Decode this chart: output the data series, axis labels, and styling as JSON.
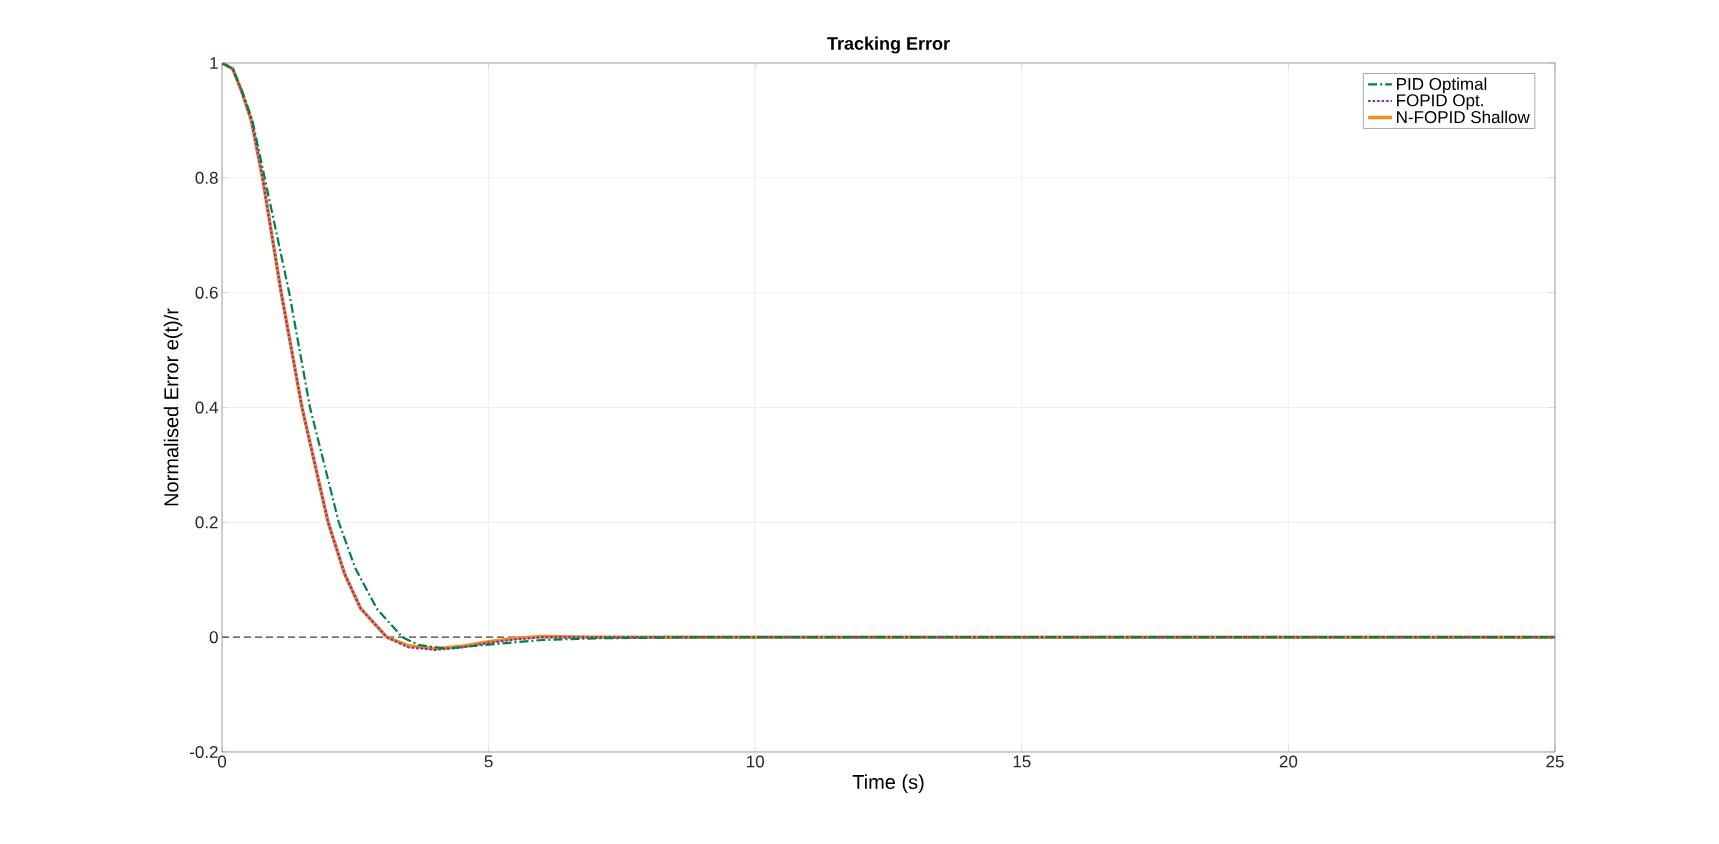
{
  "chart_data": {
    "type": "line",
    "title": "Tracking Error",
    "xlabel": "Time (s)",
    "ylabel": "Normalised Error  e(t)/r",
    "xlim": [
      0,
      25
    ],
    "ylim": [
      -0.2,
      1
    ],
    "xticks": [
      0,
      5,
      10,
      15,
      20,
      25
    ],
    "yticks": [
      -0.2,
      0,
      0.2,
      0.4,
      0.6,
      0.8,
      1
    ],
    "grid": true,
    "legend": "top right",
    "ref_lines": [
      {
        "axis": "y",
        "value": 0,
        "color": "#404040",
        "line_style": "dashed"
      }
    ],
    "series": [
      {
        "name": "PID Optimal",
        "color": "#00804a",
        "line_style": "dashed",
        "x": [
          0,
          0.2,
          0.38,
          0.57,
          0.8,
          1.26,
          1.65,
          2.19,
          2.5,
          2.9,
          3.38,
          3.7,
          4.2,
          5,
          6,
          7,
          9,
          25
        ],
        "values": [
          1,
          0.99,
          0.95,
          0.9,
          0.8,
          0.6,
          0.4,
          0.2,
          0.12,
          0.05,
          0,
          -0.014,
          -0.02,
          -0.013,
          -0.005,
          -0.002,
          0,
          0
        ]
      },
      {
        "name": "FOPID Opt.",
        "color": "#7e2fbe",
        "line_style": "dotted",
        "x": [
          0,
          0.2,
          0.37,
          0.55,
          0.76,
          1.11,
          1.5,
          1.99,
          2.3,
          2.6,
          3.09,
          3.5,
          4,
          4.5,
          5,
          5.5,
          6,
          7,
          25
        ],
        "values": [
          1,
          0.99,
          0.95,
          0.9,
          0.8,
          0.6,
          0.4,
          0.2,
          0.11,
          0.05,
          0,
          -0.018,
          -0.022,
          -0.018,
          -0.01,
          -0.004,
          0,
          0,
          0
        ]
      },
      {
        "name": "N-FOPID Shallow",
        "color": "#f28e1c",
        "line_style": "solid",
        "x": [
          0,
          0.2,
          0.37,
          0.55,
          0.76,
          1.11,
          1.5,
          1.99,
          2.3,
          2.6,
          3.09,
          3.5,
          4,
          4.5,
          5,
          5.5,
          6,
          7,
          25
        ],
        "values": [
          1,
          0.99,
          0.95,
          0.9,
          0.8,
          0.6,
          0.4,
          0.2,
          0.11,
          0.05,
          0,
          -0.015,
          -0.02,
          -0.016,
          -0.008,
          -0.002,
          0.001,
          0,
          0
        ]
      }
    ]
  }
}
